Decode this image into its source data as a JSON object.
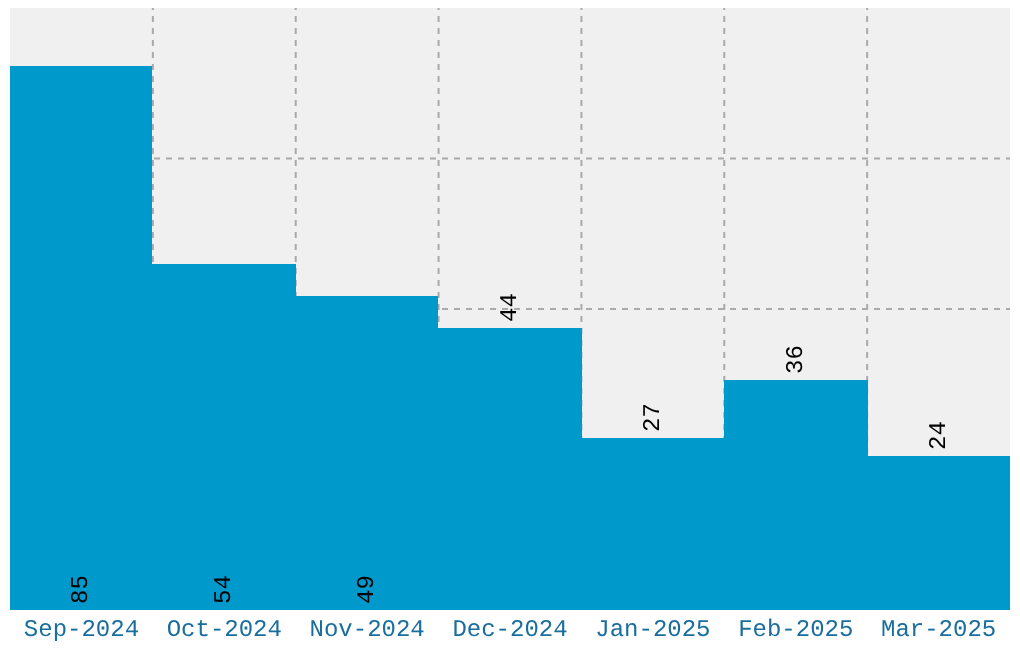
{
  "chart_data": {
    "type": "bar",
    "categories": [
      "Sep-2024",
      "Oct-2024",
      "Nov-2024",
      "Dec-2024",
      "Jan-2025",
      "Feb-2025",
      "Mar-2025"
    ],
    "values": [
      85,
      54,
      49,
      44,
      27,
      36,
      24
    ],
    "color": "#0099cc",
    "data_labels": true,
    "grid": true,
    "tick_labels": "x",
    "ylim": [
      0,
      94
    ]
  }
}
